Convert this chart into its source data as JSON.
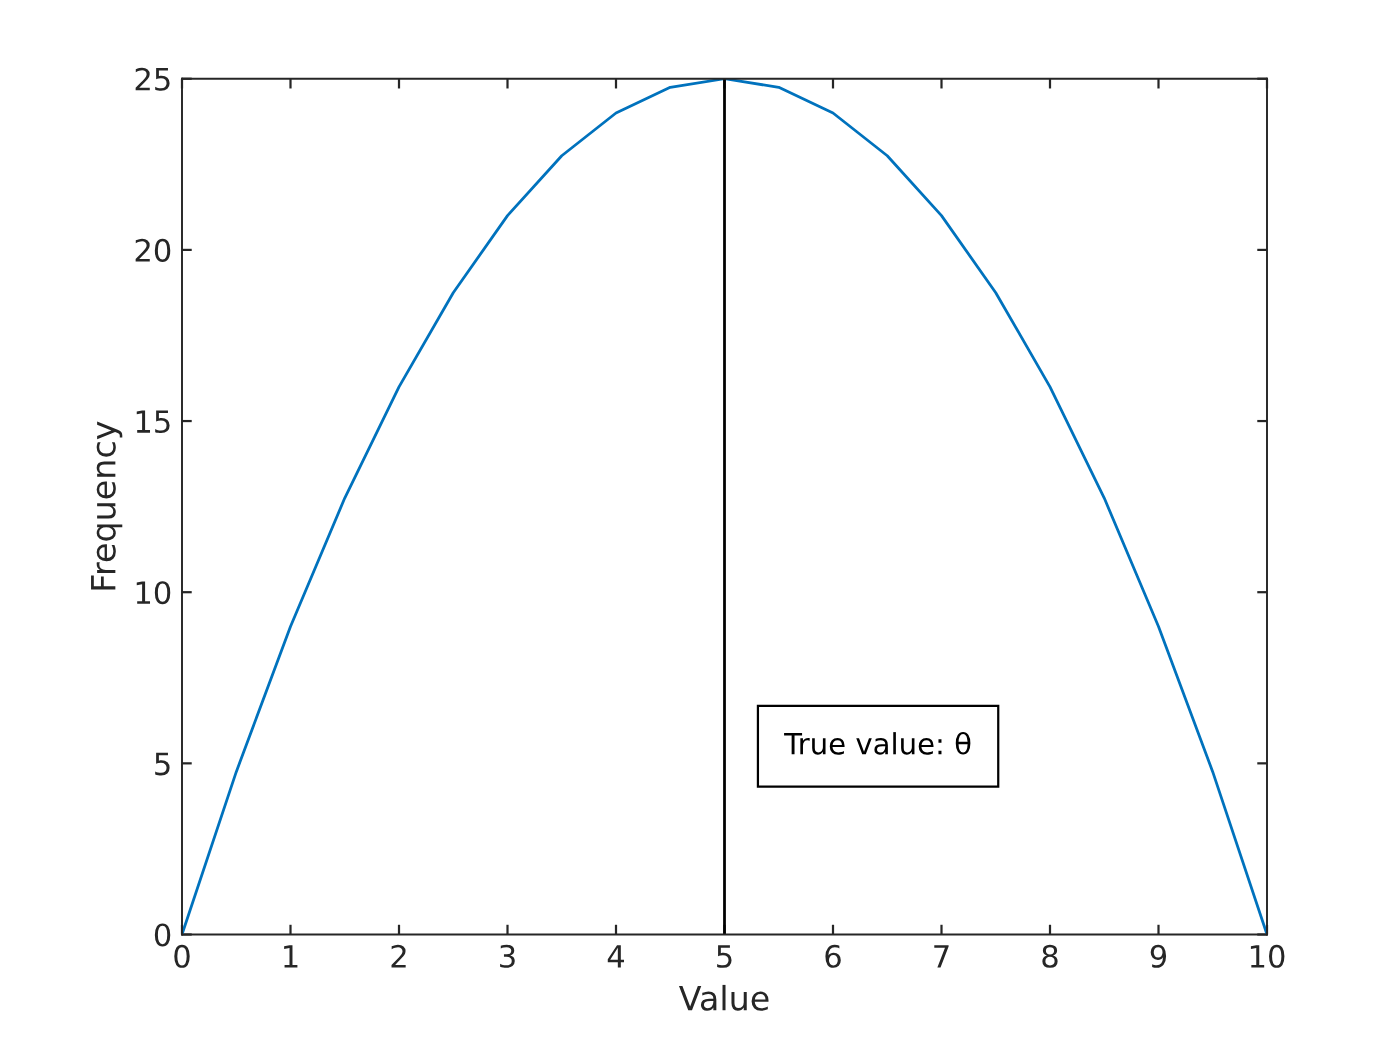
{
  "chart_data": {
    "type": "line",
    "xlabel": "Value",
    "ylabel": "Frequency",
    "x": [
      0,
      0.5,
      1,
      1.5,
      2,
      2.5,
      3,
      3.5,
      4,
      4.5,
      5,
      5.5,
      6,
      6.5,
      7,
      7.5,
      8,
      8.5,
      9,
      9.5,
      10
    ],
    "series": [
      {
        "color": "#0072bd",
        "values": [
          0,
          4.75,
          9,
          12.75,
          16,
          18.75,
          21,
          22.75,
          24,
          24.75,
          25,
          24.75,
          24,
          22.75,
          21,
          18.75,
          16,
          12.75,
          9,
          4.75,
          0
        ]
      }
    ],
    "xlim": [
      0,
      10
    ],
    "ylim": [
      0,
      25
    ],
    "xticks": [
      0,
      1,
      2,
      3,
      4,
      5,
      6,
      7,
      8,
      9,
      10
    ],
    "yticks": [
      0,
      5,
      10,
      15,
      20,
      25
    ],
    "ref_lines": [
      {
        "axis": "x",
        "value": 5,
        "color": "#000000",
        "label": "True value: θ"
      }
    ],
    "grid": false,
    "legend": false,
    "marker": "none",
    "line_style": "solid"
  }
}
